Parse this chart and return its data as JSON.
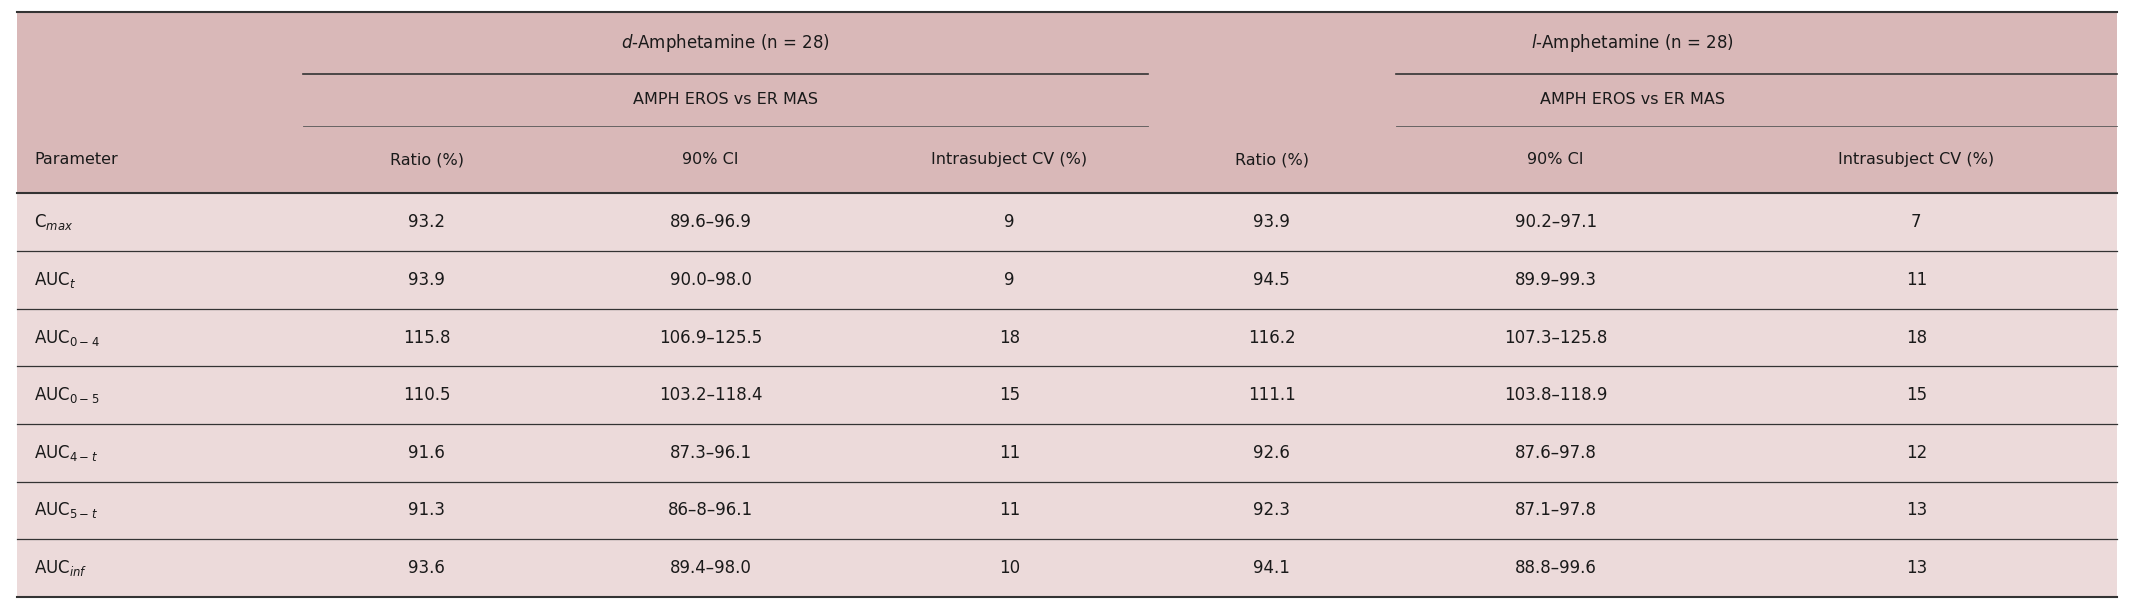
{
  "header_bg": "#d9b8b8",
  "row_bg": "#ecdada",
  "border_color": "#555555",
  "text_color": "#1a1a1a",
  "col_headers": [
    "Ratio (%)",
    "90% CI",
    "Intrasubject CV (%)"
  ],
  "param_display": [
    {
      "base": "C",
      "sub": "max"
    },
    {
      "base": "AUC",
      "sub": "t"
    },
    {
      "base": "AUC",
      "sub": "0-4"
    },
    {
      "base": "AUC",
      "sub": "0-5"
    },
    {
      "base": "AUC",
      "sub": "4-t"
    },
    {
      "base": "AUC",
      "sub": "5-t"
    },
    {
      "base": "AUC",
      "sub": "inf"
    }
  ],
  "d_data": [
    [
      "93.2",
      "89.6–96.9",
      "9"
    ],
    [
      "93.9",
      "90.0–98.0",
      "9"
    ],
    [
      "115.8",
      "106.9–125.5",
      "18"
    ],
    [
      "110.5",
      "103.2–118.4",
      "15"
    ],
    [
      "91.6",
      "87.3–96.1",
      "11"
    ],
    [
      "91.3",
      "86–8–96.1",
      "11"
    ],
    [
      "93.6",
      "89.4–98.0",
      "10"
    ]
  ],
  "l_data": [
    [
      "93.9",
      "90.2–97.1",
      "7"
    ],
    [
      "94.5",
      "89.9–99.3",
      "11"
    ],
    [
      "116.2",
      "107.3–125.8",
      "18"
    ],
    [
      "111.1",
      "103.8–118.9",
      "15"
    ],
    [
      "92.6",
      "87.6–97.8",
      "12"
    ],
    [
      "92.3",
      "87.1–97.8",
      "13"
    ],
    [
      "94.1",
      "88.8–99.6",
      "13"
    ]
  ],
  "fig_width": 21.34,
  "fig_height": 6.06,
  "dpi": 100
}
